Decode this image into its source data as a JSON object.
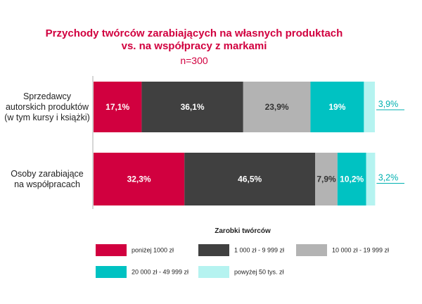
{
  "chart_data": {
    "type": "bar",
    "orientation": "horizontal",
    "stacked": true,
    "title_line1": "Przychody twórców zarabiających na własnych produktach",
    "title_line2": "vs. na współpracy z markami",
    "subtitle": "n=300",
    "categories": [
      [
        "Sprzedawcy",
        "autorskich produktów",
        "(w tym kursy i książki)"
      ],
      [
        "Osoby zarabiające",
        "na współpracach"
      ]
    ],
    "series": [
      {
        "name": "poniżej 1000 zł",
        "color": "#D1003F",
        "values": [
          17.1,
          32.3
        ],
        "labels": [
          "17,1%",
          "32,3%"
        ]
      },
      {
        "name": "1 000 zł - 9 999 zł",
        "color": "#404040",
        "values": [
          36.1,
          46.5
        ],
        "labels": [
          "36,1%",
          "46,5%"
        ]
      },
      {
        "name": "10 000 zł - 19 999 zł",
        "color": "#B3B3B3",
        "values": [
          23.9,
          7.9
        ],
        "labels": [
          "23,9%",
          "7,9%"
        ]
      },
      {
        "name": "20 000 zł - 49 999 zł",
        "color": "#00C2C2",
        "values": [
          19.0,
          10.2
        ],
        "labels": [
          "19%",
          "10,2%"
        ]
      },
      {
        "name": "powyżej 50 tys. zł",
        "color": "#B5F3F0",
        "values": [
          3.9,
          3.2
        ],
        "labels": [
          "3,9%",
          "3,2%"
        ]
      }
    ],
    "xlim": [
      0,
      100
    ],
    "legend_title": "Zarobki twórców",
    "legend_position": "bottom",
    "title_color": "#D1003F",
    "outside_label_color": "#00B0B0"
  }
}
